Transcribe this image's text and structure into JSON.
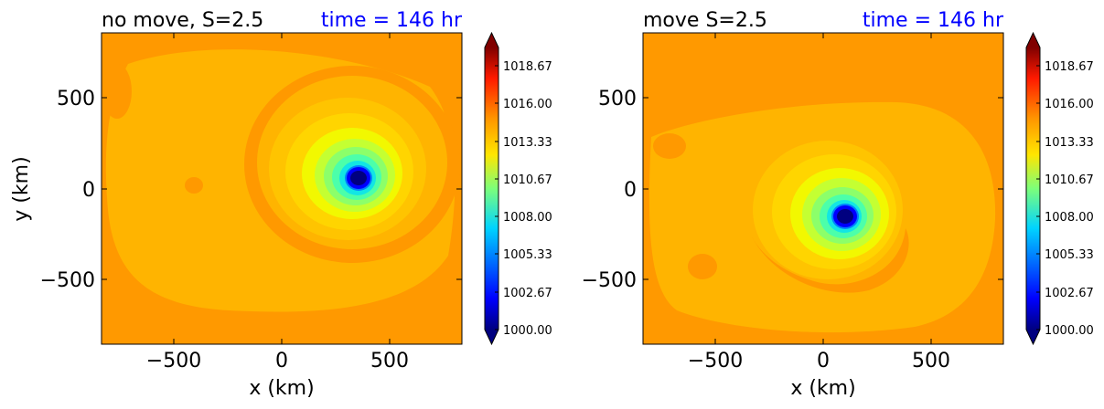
{
  "chart_data": [
    {
      "type": "heatmap",
      "title": "no move, S=2.5",
      "subtitle": "time = 146 hr",
      "xlabel": "x (km)",
      "ylabel": "y (km)",
      "xlim": [
        -850,
        850
      ],
      "ylim": [
        -850,
        850
      ],
      "xticks": [
        -500,
        0,
        500
      ],
      "yticks": [
        -500,
        0,
        500
      ],
      "xtick_labels": [
        "−500",
        "0",
        "500"
      ],
      "ytick_labels": [
        "−500",
        "0",
        "500"
      ],
      "variable_range": [
        1000.0,
        1020.0
      ],
      "background_value": 1015.4,
      "min_center": {
        "x": 360,
        "y": 60,
        "value": 1000.0
      },
      "colorbar_ticks": [
        "1000.00",
        "1002.67",
        "1005.33",
        "1008.00",
        "1010.67",
        "1013.33",
        "1016.00",
        "1018.67"
      ],
      "grid": false
    },
    {
      "type": "heatmap",
      "title": "move S=2.5",
      "subtitle": "time = 146 hr",
      "xlabel": "x (km)",
      "ylabel": "",
      "xlim": [
        -850,
        850
      ],
      "ylim": [
        -850,
        850
      ],
      "xticks": [
        -500,
        0,
        500
      ],
      "yticks": [
        -500,
        0,
        500
      ],
      "xtick_labels": [
        "−500",
        "0",
        "500"
      ],
      "ytick_labels": [
        "−500",
        "0",
        "500"
      ],
      "variable_range": [
        1000.0,
        1020.0
      ],
      "background_value": 1015.4,
      "min_center": {
        "x": 100,
        "y": -150,
        "value": 1000.0
      },
      "colorbar_ticks": [
        "1000.00",
        "1002.67",
        "1005.33",
        "1008.00",
        "1010.67",
        "1013.33",
        "1016.00",
        "1018.67"
      ],
      "grid": false
    }
  ],
  "colors": {
    "subtitle": "#0000ff",
    "outer": "#ff9900",
    "environment": "#ffb400",
    "ring": "#ffc400",
    "inner": "#ffd500",
    "core_yellow": "#f2f800",
    "core_lightgreen": "#c4ff32",
    "core_green": "#8cff6a",
    "core_cyan": "#4cffaa",
    "core_lightblue": "#12e6e4",
    "core_blue": "#0080ff",
    "eye": "#0000ff",
    "eye_center": "#000080"
  },
  "colormap": "jet"
}
